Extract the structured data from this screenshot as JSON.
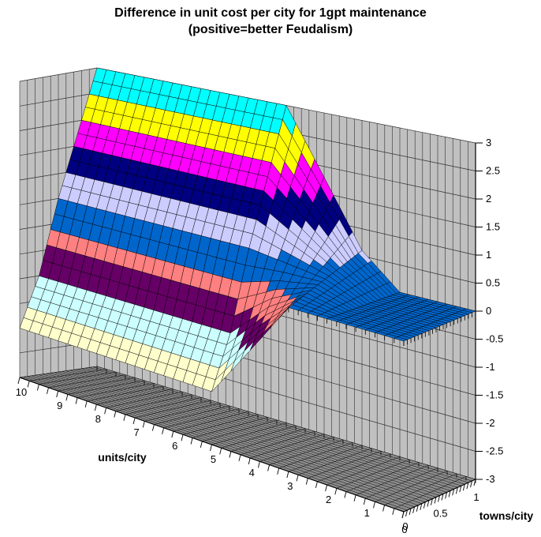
{
  "title": {
    "line1": "Difference in unit cost per city for 1gpt maintenance",
    "line2": "(positive=better Feudalism)"
  },
  "chart_data": {
    "type": "surface",
    "title": "Difference in unit cost per city for 1gpt maintenance (positive=better Feudalism)",
    "x_axis": {
      "title": "units/city",
      "labels": [
        10,
        9,
        8,
        7,
        6,
        5,
        4,
        3,
        2,
        1,
        0
      ],
      "range": [
        0,
        10
      ],
      "minor_tick_step": 0.25
    },
    "y_axis": {
      "title": "towns/city",
      "labels": [
        0,
        0.5,
        1
      ],
      "range": [
        0,
        1
      ],
      "minor_tick_step": 0.05
    },
    "z_axis": {
      "range": [
        -3,
        3
      ],
      "tick_step": 0.5,
      "labels": [
        "3",
        "2.5",
        "2",
        "1.5",
        "1",
        "0.5",
        "0",
        "-0.5",
        "-1",
        "-1.5",
        "-2",
        "-2.5",
        "-3"
      ]
    },
    "legend_position": "none",
    "grid": true,
    "bands": [
      {
        "from": -3.0,
        "to": -2.5,
        "color": "#9999FF"
      },
      {
        "from": -2.5,
        "to": -2.0,
        "color": "#993366"
      },
      {
        "from": -2.0,
        "to": -1.5,
        "color": "#FFFFCC"
      },
      {
        "from": -1.5,
        "to": -1.0,
        "color": "#CCFFFF"
      },
      {
        "from": -1.0,
        "to": -0.5,
        "color": "#660066"
      },
      {
        "from": -0.5,
        "to": 0.0,
        "color": "#FF8080"
      },
      {
        "from": 0.0,
        "to": 0.5,
        "color": "#0066CC"
      },
      {
        "from": 0.5,
        "to": 1.0,
        "color": "#CCCCFF"
      },
      {
        "from": 1.0,
        "to": 1.5,
        "color": "#000080"
      },
      {
        "from": 1.5,
        "to": 2.0,
        "color": "#FF00FF"
      },
      {
        "from": 2.0,
        "to": 2.5,
        "color": "#FFFF00"
      },
      {
        "from": 2.5,
        "to": 3.0,
        "color": "#00FFFF"
      }
    ],
    "surface_grid": {
      "comment": "z values estimated from band contours; rows = towns/city, cols = units/city",
      "u": [
        0,
        1,
        2,
        3,
        4,
        5,
        6,
        7,
        8,
        9,
        10
      ],
      "t": [
        0,
        0.25,
        0.5,
        0.75,
        1
      ],
      "z": [
        [
          0,
          0,
          0,
          0.0,
          -1.0,
          -2.0,
          -2.0,
          -2.0,
          -2.0,
          -2.0,
          -2.0
        ],
        [
          0,
          0,
          0,
          0.15,
          -0.3,
          -1.0,
          -1.0,
          -1.0,
          -1.0,
          -1.0,
          -1.0
        ],
        [
          0,
          0,
          0,
          0.3,
          0.4,
          0.5,
          0.5,
          0.5,
          0.5,
          0.5,
          0.5
        ],
        [
          0,
          0,
          0,
          0.45,
          1.1,
          1.75,
          1.75,
          1.75,
          1.75,
          1.75,
          1.75
        ],
        [
          0,
          0,
          0,
          0.6,
          1.8,
          3.0,
          3.0,
          3.0,
          3.0,
          3.0,
          3.0
        ]
      ]
    }
  },
  "colors": {
    "background": "#FFFFFF",
    "wall": "#C0C0C0",
    "wall_line": "#303030",
    "floor": "#8C8C8C",
    "floor_line": "#0A0A0A",
    "mesh_line": "#000000",
    "axis": "#000000",
    "text": "#000000"
  }
}
